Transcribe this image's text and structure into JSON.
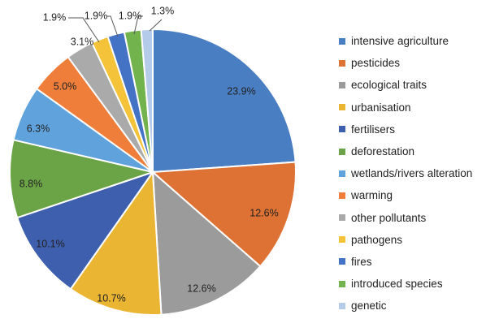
{
  "chart_data": {
    "type": "pie",
    "categories": [
      "intensive agriculture",
      "pesticides",
      "ecological traits",
      "urbanisation",
      "fertilisers",
      "deforestation",
      "wetlands/rivers alteration",
      "warming",
      "other pollutants",
      "pathogens",
      "fires",
      "introduced species",
      "genetic"
    ],
    "values": [
      23.9,
      12.6,
      12.6,
      10.7,
      10.1,
      8.8,
      6.3,
      5.0,
      3.1,
      1.9,
      1.9,
      1.9,
      1.3
    ],
    "value_labels": [
      "23.9%",
      "12.6%",
      "12.6%",
      "10.7%",
      "10.1%",
      "8.8%",
      "6.3%",
      "5.0%",
      "3.1%",
      "1.9%",
      "1.9%",
      "1.9%",
      "1.3%"
    ],
    "colors": [
      "#4a7ec2",
      "#dd7234",
      "#9b9b9b",
      "#e9b532",
      "#3d5fae",
      "#6ba447",
      "#5fa2dc",
      "#ee7e3a",
      "#aaaaaa",
      "#f4c339",
      "#4472c4",
      "#72b34d",
      "#b4cbea"
    ],
    "start_angle": 0,
    "direction": "clockwise",
    "title": "",
    "legend_position": "right"
  }
}
